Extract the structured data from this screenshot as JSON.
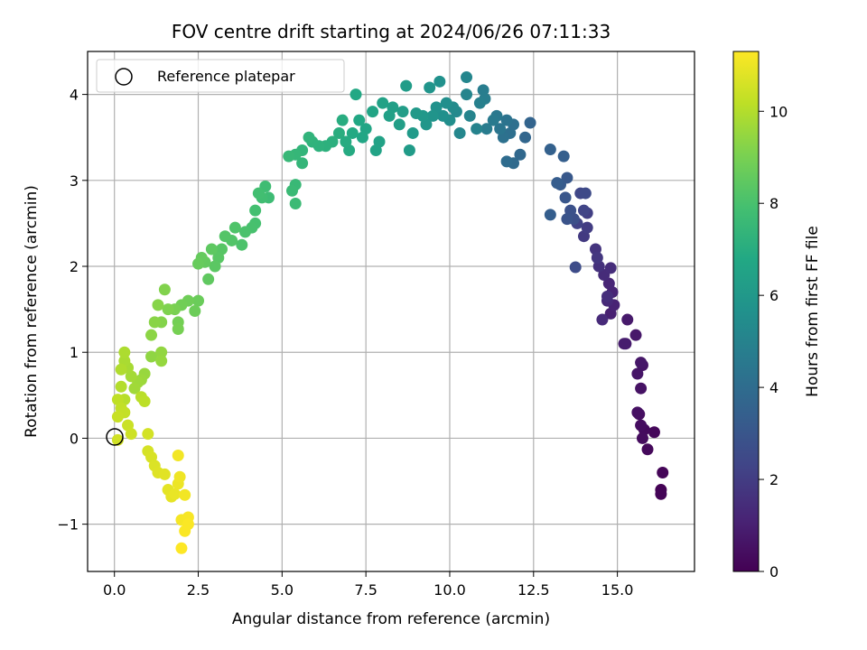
{
  "chart_data": {
    "type": "scatter",
    "title": "FOV centre drift starting at 2024/06/26 07:11:33",
    "xlabel": "Angular distance from reference (arcmin)",
    "ylabel": "Rotation from reference (arcmin)",
    "xlim": [
      -0.8,
      17.3
    ],
    "ylim": [
      -1.55,
      4.5
    ],
    "xticks": [
      0.0,
      2.5,
      5.0,
      7.5,
      10.0,
      12.5,
      15.0
    ],
    "xtick_labels": [
      "0.0",
      "2.5",
      "5.0",
      "7.5",
      "10.0",
      "12.5",
      "15.0"
    ],
    "yticks": [
      -1,
      0,
      1,
      2,
      3,
      4
    ],
    "ytick_labels": [
      "−1",
      "0",
      "1",
      "2",
      "3",
      "4"
    ],
    "grid": true,
    "legend": {
      "position": "top-left",
      "entries": [
        "Reference platepar"
      ]
    },
    "reference_point": {
      "x": 0,
      "y": 0,
      "label": "Reference platepar"
    },
    "colorbar": {
      "label": "Hours from first FF file",
      "colormap": "viridis",
      "range": [
        0,
        11.3
      ],
      "ticks": [
        0,
        2,
        4,
        6,
        8,
        10
      ],
      "tick_labels": [
        "0",
        "2",
        "4",
        "6",
        "8",
        "10"
      ]
    },
    "points": [
      [
        16.3,
        -0.6,
        0.05
      ],
      [
        16.3,
        -0.65,
        0.1
      ],
      [
        16.35,
        -0.4,
        0.15
      ],
      [
        16.1,
        0.07,
        0.2
      ],
      [
        15.9,
        -0.13,
        0.25
      ],
      [
        15.8,
        0.1,
        0.3
      ],
      [
        15.75,
        0.0,
        0.35
      ],
      [
        15.7,
        0.15,
        0.4
      ],
      [
        15.65,
        0.28,
        0.45
      ],
      [
        15.6,
        0.3,
        0.5
      ],
      [
        15.7,
        0.58,
        0.55
      ],
      [
        15.75,
        0.85,
        0.6
      ],
      [
        15.6,
        0.75,
        0.65
      ],
      [
        15.7,
        0.88,
        0.7
      ],
      [
        15.55,
        1.2,
        0.75
      ],
      [
        15.3,
        1.38,
        0.8
      ],
      [
        15.25,
        1.1,
        0.85
      ],
      [
        15.2,
        1.1,
        0.9
      ],
      [
        14.8,
        1.45,
        1.0
      ],
      [
        14.9,
        1.55,
        1.1
      ],
      [
        14.85,
        1.7,
        1.15
      ],
      [
        14.75,
        1.8,
        1.2
      ],
      [
        14.7,
        1.6,
        1.3
      ],
      [
        14.55,
        1.38,
        1.35
      ],
      [
        14.6,
        1.9,
        1.4
      ],
      [
        14.8,
        1.98,
        1.45
      ],
      [
        14.7,
        1.65,
        1.5
      ],
      [
        14.45,
        2.0,
        1.6
      ],
      [
        14.35,
        2.2,
        1.7
      ],
      [
        14.4,
        2.1,
        1.8
      ],
      [
        14.0,
        2.35,
        1.9
      ],
      [
        14.1,
        2.45,
        2.0
      ],
      [
        14.1,
        2.62,
        2.1
      ],
      [
        13.8,
        2.5,
        2.2
      ],
      [
        14.0,
        2.65,
        2.3
      ],
      [
        13.9,
        2.85,
        2.4
      ],
      [
        14.05,
        2.85,
        2.5
      ],
      [
        13.75,
        1.99,
        2.6
      ],
      [
        13.7,
        2.55,
        2.7
      ],
      [
        13.6,
        2.65,
        2.8
      ],
      [
        13.5,
        2.55,
        2.9
      ],
      [
        13.45,
        2.8,
        3.0
      ],
      [
        13.5,
        3.03,
        3.1
      ],
      [
        13.3,
        2.95,
        3.2
      ],
      [
        13.2,
        2.97,
        3.3
      ],
      [
        13.0,
        2.6,
        3.35
      ],
      [
        13.4,
        3.28,
        3.4
      ],
      [
        13.0,
        3.36,
        3.5
      ],
      [
        12.4,
        3.67,
        3.6
      ],
      [
        12.25,
        3.5,
        3.7
      ],
      [
        12.1,
        3.3,
        3.8
      ],
      [
        11.9,
        3.2,
        3.9
      ],
      [
        11.7,
        3.22,
        4.0
      ],
      [
        11.8,
        3.55,
        4.1
      ],
      [
        11.9,
        3.65,
        4.15
      ],
      [
        11.6,
        3.5,
        4.2
      ],
      [
        11.7,
        3.7,
        4.3
      ],
      [
        11.5,
        3.6,
        4.4
      ],
      [
        11.4,
        3.75,
        4.5
      ],
      [
        11.3,
        3.7,
        4.6
      ],
      [
        11.1,
        3.6,
        4.7
      ],
      [
        11.0,
        4.05,
        4.75
      ],
      [
        11.05,
        3.95,
        4.8
      ],
      [
        10.9,
        3.9,
        4.9
      ],
      [
        10.8,
        3.6,
        5.0
      ],
      [
        10.6,
        3.75,
        5.05
      ],
      [
        10.5,
        4.0,
        5.1
      ],
      [
        10.5,
        4.2,
        5.15
      ],
      [
        10.3,
        3.55,
        5.2
      ],
      [
        10.2,
        3.8,
        5.3
      ],
      [
        10.1,
        3.85,
        5.4
      ],
      [
        10.0,
        3.7,
        5.5
      ],
      [
        9.9,
        3.9,
        5.55
      ],
      [
        9.8,
        3.75,
        5.6
      ],
      [
        9.7,
        4.15,
        5.65
      ],
      [
        9.6,
        3.85,
        5.7
      ],
      [
        9.5,
        3.75,
        5.8
      ],
      [
        9.4,
        4.08,
        5.85
      ],
      [
        9.3,
        3.65,
        5.9
      ],
      [
        9.2,
        3.75,
        6.0
      ],
      [
        9.0,
        3.78,
        6.05
      ],
      [
        8.9,
        3.55,
        6.1
      ],
      [
        8.8,
        3.35,
        6.15
      ],
      [
        8.7,
        4.1,
        6.2
      ],
      [
        8.6,
        3.8,
        6.25
      ],
      [
        8.5,
        3.65,
        6.3
      ],
      [
        8.3,
        3.85,
        6.35
      ],
      [
        8.2,
        3.75,
        6.4
      ],
      [
        8.0,
        3.9,
        6.45
      ],
      [
        7.9,
        3.45,
        6.5
      ],
      [
        7.8,
        3.35,
        6.55
      ],
      [
        7.7,
        3.8,
        6.6
      ],
      [
        7.5,
        3.6,
        6.65
      ],
      [
        7.4,
        3.5,
        6.7
      ],
      [
        7.3,
        3.7,
        6.75
      ],
      [
        7.2,
        4.0,
        6.8
      ],
      [
        7.1,
        3.55,
        6.85
      ],
      [
        7.0,
        3.35,
        6.9
      ],
      [
        6.9,
        3.45,
        6.95
      ],
      [
        6.8,
        3.7,
        7.0
      ],
      [
        6.7,
        3.55,
        7.05
      ],
      [
        6.5,
        3.45,
        7.1
      ],
      [
        6.3,
        3.4,
        7.15
      ],
      [
        6.1,
        3.4,
        7.2
      ],
      [
        5.9,
        3.45,
        7.25
      ],
      [
        5.8,
        3.5,
        7.3
      ],
      [
        5.6,
        3.35,
        7.35
      ],
      [
        5.6,
        3.2,
        7.4
      ],
      [
        5.4,
        3.3,
        7.45
      ],
      [
        5.2,
        3.28,
        7.5
      ],
      [
        5.4,
        2.95,
        7.55
      ],
      [
        5.3,
        2.88,
        7.6
      ],
      [
        5.4,
        2.73,
        7.65
      ],
      [
        4.6,
        2.8,
        7.7
      ],
      [
        4.5,
        2.93,
        7.75
      ],
      [
        4.4,
        2.8,
        7.8
      ],
      [
        4.3,
        2.85,
        7.85
      ],
      [
        4.2,
        2.65,
        7.9
      ],
      [
        4.2,
        2.5,
        7.95
      ],
      [
        4.1,
        2.45,
        8.0
      ],
      [
        3.9,
        2.4,
        8.05
      ],
      [
        3.8,
        2.25,
        8.1
      ],
      [
        3.6,
        2.45,
        8.15
      ],
      [
        3.5,
        2.3,
        8.2
      ],
      [
        3.3,
        2.35,
        8.25
      ],
      [
        3.2,
        2.2,
        8.3
      ],
      [
        3.1,
        2.1,
        8.35
      ],
      [
        3.0,
        2.0,
        8.4
      ],
      [
        2.9,
        2.2,
        8.45
      ],
      [
        2.8,
        1.85,
        8.5
      ],
      [
        2.7,
        2.05,
        8.55
      ],
      [
        2.6,
        2.1,
        8.6
      ],
      [
        2.5,
        2.03,
        8.65
      ],
      [
        2.5,
        1.6,
        8.7
      ],
      [
        2.4,
        1.48,
        8.75
      ],
      [
        2.2,
        1.6,
        8.8
      ],
      [
        2.0,
        1.55,
        8.85
      ],
      [
        1.9,
        1.35,
        8.9
      ],
      [
        1.9,
        1.27,
        8.95
      ],
      [
        1.8,
        1.5,
        9.0
      ],
      [
        1.6,
        1.5,
        9.1
      ],
      [
        1.5,
        1.73,
        9.15
      ],
      [
        1.4,
        1.35,
        9.2
      ],
      [
        1.3,
        1.55,
        9.25
      ],
      [
        1.2,
        1.35,
        9.3
      ],
      [
        1.1,
        1.2,
        9.35
      ],
      [
        1.1,
        0.95,
        9.4
      ],
      [
        1.4,
        1.0,
        9.45
      ],
      [
        1.4,
        0.9,
        9.5
      ],
      [
        0.9,
        0.75,
        9.55
      ],
      [
        0.8,
        0.68,
        9.6
      ],
      [
        0.7,
        0.65,
        9.65
      ],
      [
        0.6,
        0.58,
        9.7
      ],
      [
        0.5,
        0.72,
        9.75
      ],
      [
        0.4,
        0.82,
        9.8
      ],
      [
        0.3,
        0.9,
        9.85
      ],
      [
        0.3,
        1.0,
        9.9
      ],
      [
        0.2,
        0.8,
        9.95
      ],
      [
        0.2,
        0.6,
        10.0
      ],
      [
        0.3,
        0.45,
        10.05
      ],
      [
        0.8,
        0.48,
        10.1
      ],
      [
        0.9,
        0.43,
        10.15
      ],
      [
        0.1,
        0.45,
        10.2
      ],
      [
        0.2,
        0.35,
        10.25
      ],
      [
        0.3,
        0.3,
        10.3
      ],
      [
        0.1,
        0.25,
        10.35
      ],
      [
        0.4,
        0.15,
        10.4
      ],
      [
        0.5,
        0.05,
        10.45
      ],
      [
        0.1,
        -0.02,
        10.5
      ],
      [
        1.0,
        0.05,
        10.55
      ],
      [
        1.0,
        -0.15,
        10.6
      ],
      [
        1.1,
        -0.22,
        10.65
      ],
      [
        1.2,
        -0.32,
        10.7
      ],
      [
        1.3,
        -0.4,
        10.75
      ],
      [
        1.5,
        -0.42,
        10.8
      ],
      [
        1.6,
        -0.6,
        10.85
      ],
      [
        1.7,
        -0.68,
        10.9
      ],
      [
        1.8,
        -0.65,
        10.95
      ],
      [
        1.9,
        -0.53,
        11.0
      ],
      [
        1.95,
        -0.45,
        11.05
      ],
      [
        2.1,
        -0.66,
        11.1
      ],
      [
        1.9,
        -0.2,
        11.1
      ],
      [
        2.0,
        -0.95,
        11.15
      ],
      [
        2.2,
        -0.92,
        11.2
      ],
      [
        2.1,
        -1.08,
        11.25
      ],
      [
        2.2,
        -1.0,
        11.25
      ],
      [
        2.0,
        -1.28,
        11.3
      ]
    ]
  }
}
